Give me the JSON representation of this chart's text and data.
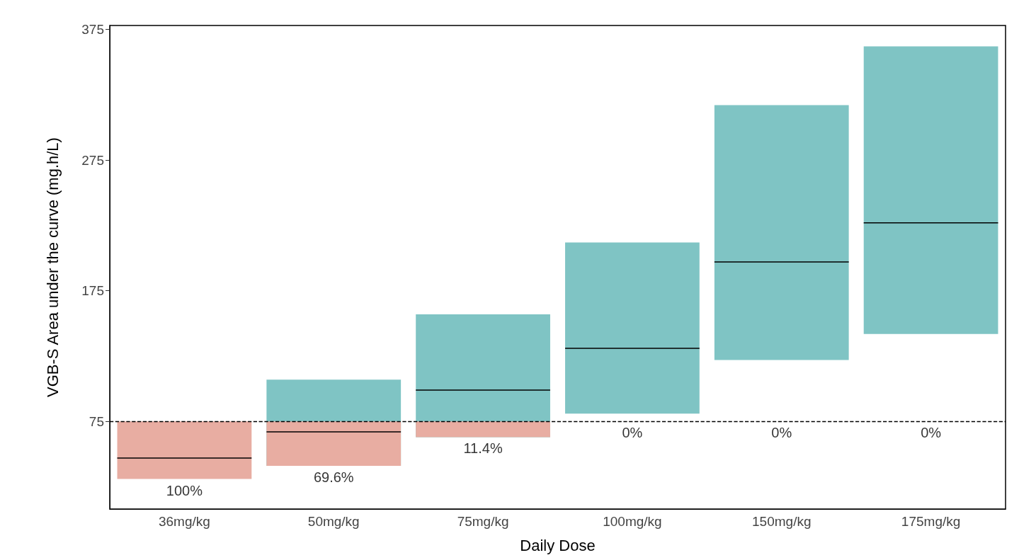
{
  "chart_data": {
    "type": "bar",
    "xlabel": "Daily Dose",
    "ylabel": "VGB-S Area under the curve (mg.h/L)",
    "categories": [
      "36mg/kg",
      "50mg/kg",
      "75mg/kg",
      "100mg/kg",
      "150mg/kg",
      "175mg/kg"
    ],
    "series": [
      {
        "type": "box",
        "colors": [
          "#e8ada2",
          "#7fc4c4",
          "#7fc4c4",
          "#7fc4c4",
          "#7fc4c4",
          "#7fc4c4"
        ],
        "boxes": [
          {
            "low": 31,
            "q1": 31,
            "median": 47,
            "q3": 75,
            "high": 75
          },
          {
            "low": 41,
            "q1": 41,
            "median": 67,
            "q3": 107,
            "high": 107
          },
          {
            "low": 63,
            "q1": 63,
            "median": 99,
            "q3": 157,
            "high": 157
          },
          {
            "low": 81,
            "q1": 81,
            "median": 131,
            "q3": 212,
            "high": 212
          },
          {
            "low": 122,
            "q1": 122,
            "median": 197,
            "q3": 317,
            "high": 317
          },
          {
            "low": 142,
            "q1": 142,
            "median": 227,
            "q3": 362,
            "high": 362
          }
        ]
      },
      {
        "color": "#e8ada2",
        "base": [
          null,
          41,
          63,
          null,
          null,
          null
        ],
        "values": [
          null,
          34,
          12,
          null,
          null,
          null
        ]
      }
    ],
    "ylim": [
      8,
      378
    ],
    "yticks": [
      75,
      175,
      275,
      375
    ],
    "grid": false,
    "ref_lines": [
      {
        "axis": "y",
        "value": 75,
        "color": "#000000",
        "line_style": "dashed"
      }
    ],
    "annotations": [
      "100%",
      "69.6%",
      "11.4%",
      "0%",
      "0%",
      "0%"
    ]
  }
}
